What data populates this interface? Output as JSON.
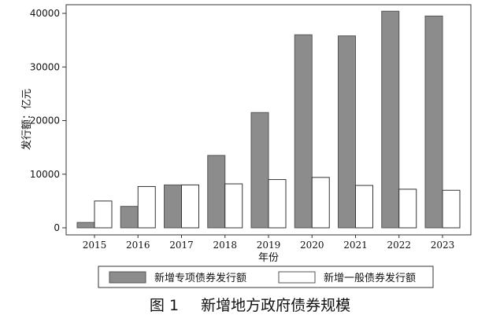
{
  "chart_data": {
    "type": "bar",
    "xlabel": "年份",
    "ylabel": "发行额：亿元",
    "ylim": [
      0,
      42000
    ],
    "yticks": [
      0,
      10000,
      20000,
      30000,
      40000
    ],
    "categories": [
      "2015",
      "2016",
      "2017",
      "2018",
      "2019",
      "2020",
      "2021",
      "2022",
      "2023"
    ],
    "series": [
      {
        "name": "新增专项债券发行额",
        "values": [
          1000,
          4000,
          8000,
          13500,
          21500,
          36000,
          35800,
          40400,
          39500
        ],
        "color": "#8c8c8c"
      },
      {
        "name": "新增一般债券发行额",
        "values": [
          5000,
          7700,
          8000,
          8200,
          9000,
          9400,
          7900,
          7200,
          7000
        ],
        "color": "#ffffff"
      }
    ],
    "legend": "bottom",
    "grid": false
  },
  "caption": {
    "figure_label": "图 1",
    "title": "新增地方政府债券规模"
  }
}
